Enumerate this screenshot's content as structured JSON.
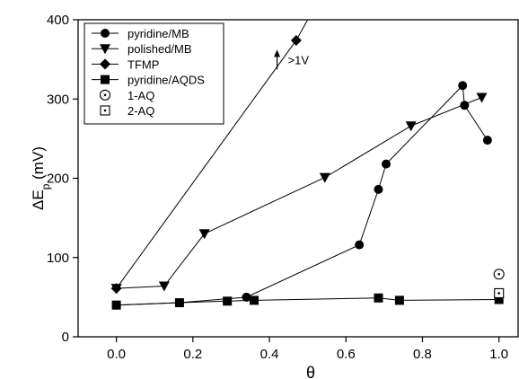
{
  "chart_data": {
    "type": "scatter",
    "xlabel": "θ",
    "ylabel_main": "ΔE",
    "ylabel_sub": "p",
    "ylabel_unit": " (mV)",
    "xlim": [
      -0.1,
      1.05
    ],
    "ylim": [
      0,
      400
    ],
    "xticks": [
      0.0,
      0.2,
      0.4,
      0.6,
      0.8,
      1.0
    ],
    "xtick_labels": [
      "0.0",
      "0.2",
      "0.4",
      "0.6",
      "0.8",
      "1.0"
    ],
    "yticks": [
      0,
      100,
      200,
      300,
      400
    ],
    "ytick_labels": [
      "0",
      "100",
      "200",
      "300",
      "400"
    ],
    "grid": false,
    "legend_position": "top-left",
    "series": [
      {
        "name": "pyridine/MB",
        "marker": "circle",
        "connected": true,
        "x": [
          0.0,
          0.165,
          0.34,
          0.635,
          0.685,
          0.705,
          0.905,
          0.91,
          0.97
        ],
        "y": [
          40,
          43,
          50,
          116,
          186,
          218,
          317,
          292,
          248
        ]
      },
      {
        "name": "polished/MB",
        "marker": "triangle-down",
        "connected": true,
        "x": [
          0.0,
          0.125,
          0.23,
          0.545,
          0.77,
          0.955
        ],
        "y": [
          61,
          64,
          130,
          201,
          266,
          302
        ]
      },
      {
        "name": "TFMP",
        "marker": "diamond",
        "connected": true,
        "x": [
          0.0,
          0.47
        ],
        "y": [
          61,
          374
        ],
        "continues_to": [
          0.5,
          400
        ]
      },
      {
        "name": "pyridine/AQDS",
        "marker": "square",
        "connected": true,
        "x": [
          0.0,
          0.165,
          0.29,
          0.36,
          0.685,
          0.74,
          1.0
        ],
        "y": [
          40,
          43,
          45,
          46,
          49,
          46,
          47
        ]
      },
      {
        "name": "1-AQ",
        "marker": "open-circle-dot",
        "connected": false,
        "x": [
          1.0
        ],
        "y": [
          79
        ]
      },
      {
        "name": "2-AQ",
        "marker": "open-square-dot",
        "connected": false,
        "x": [
          1.0
        ],
        "y": [
          55
        ]
      }
    ],
    "annotations": [
      {
        "text": ">1V",
        "arrow": "up",
        "x": 0.42,
        "y": 335
      }
    ]
  }
}
